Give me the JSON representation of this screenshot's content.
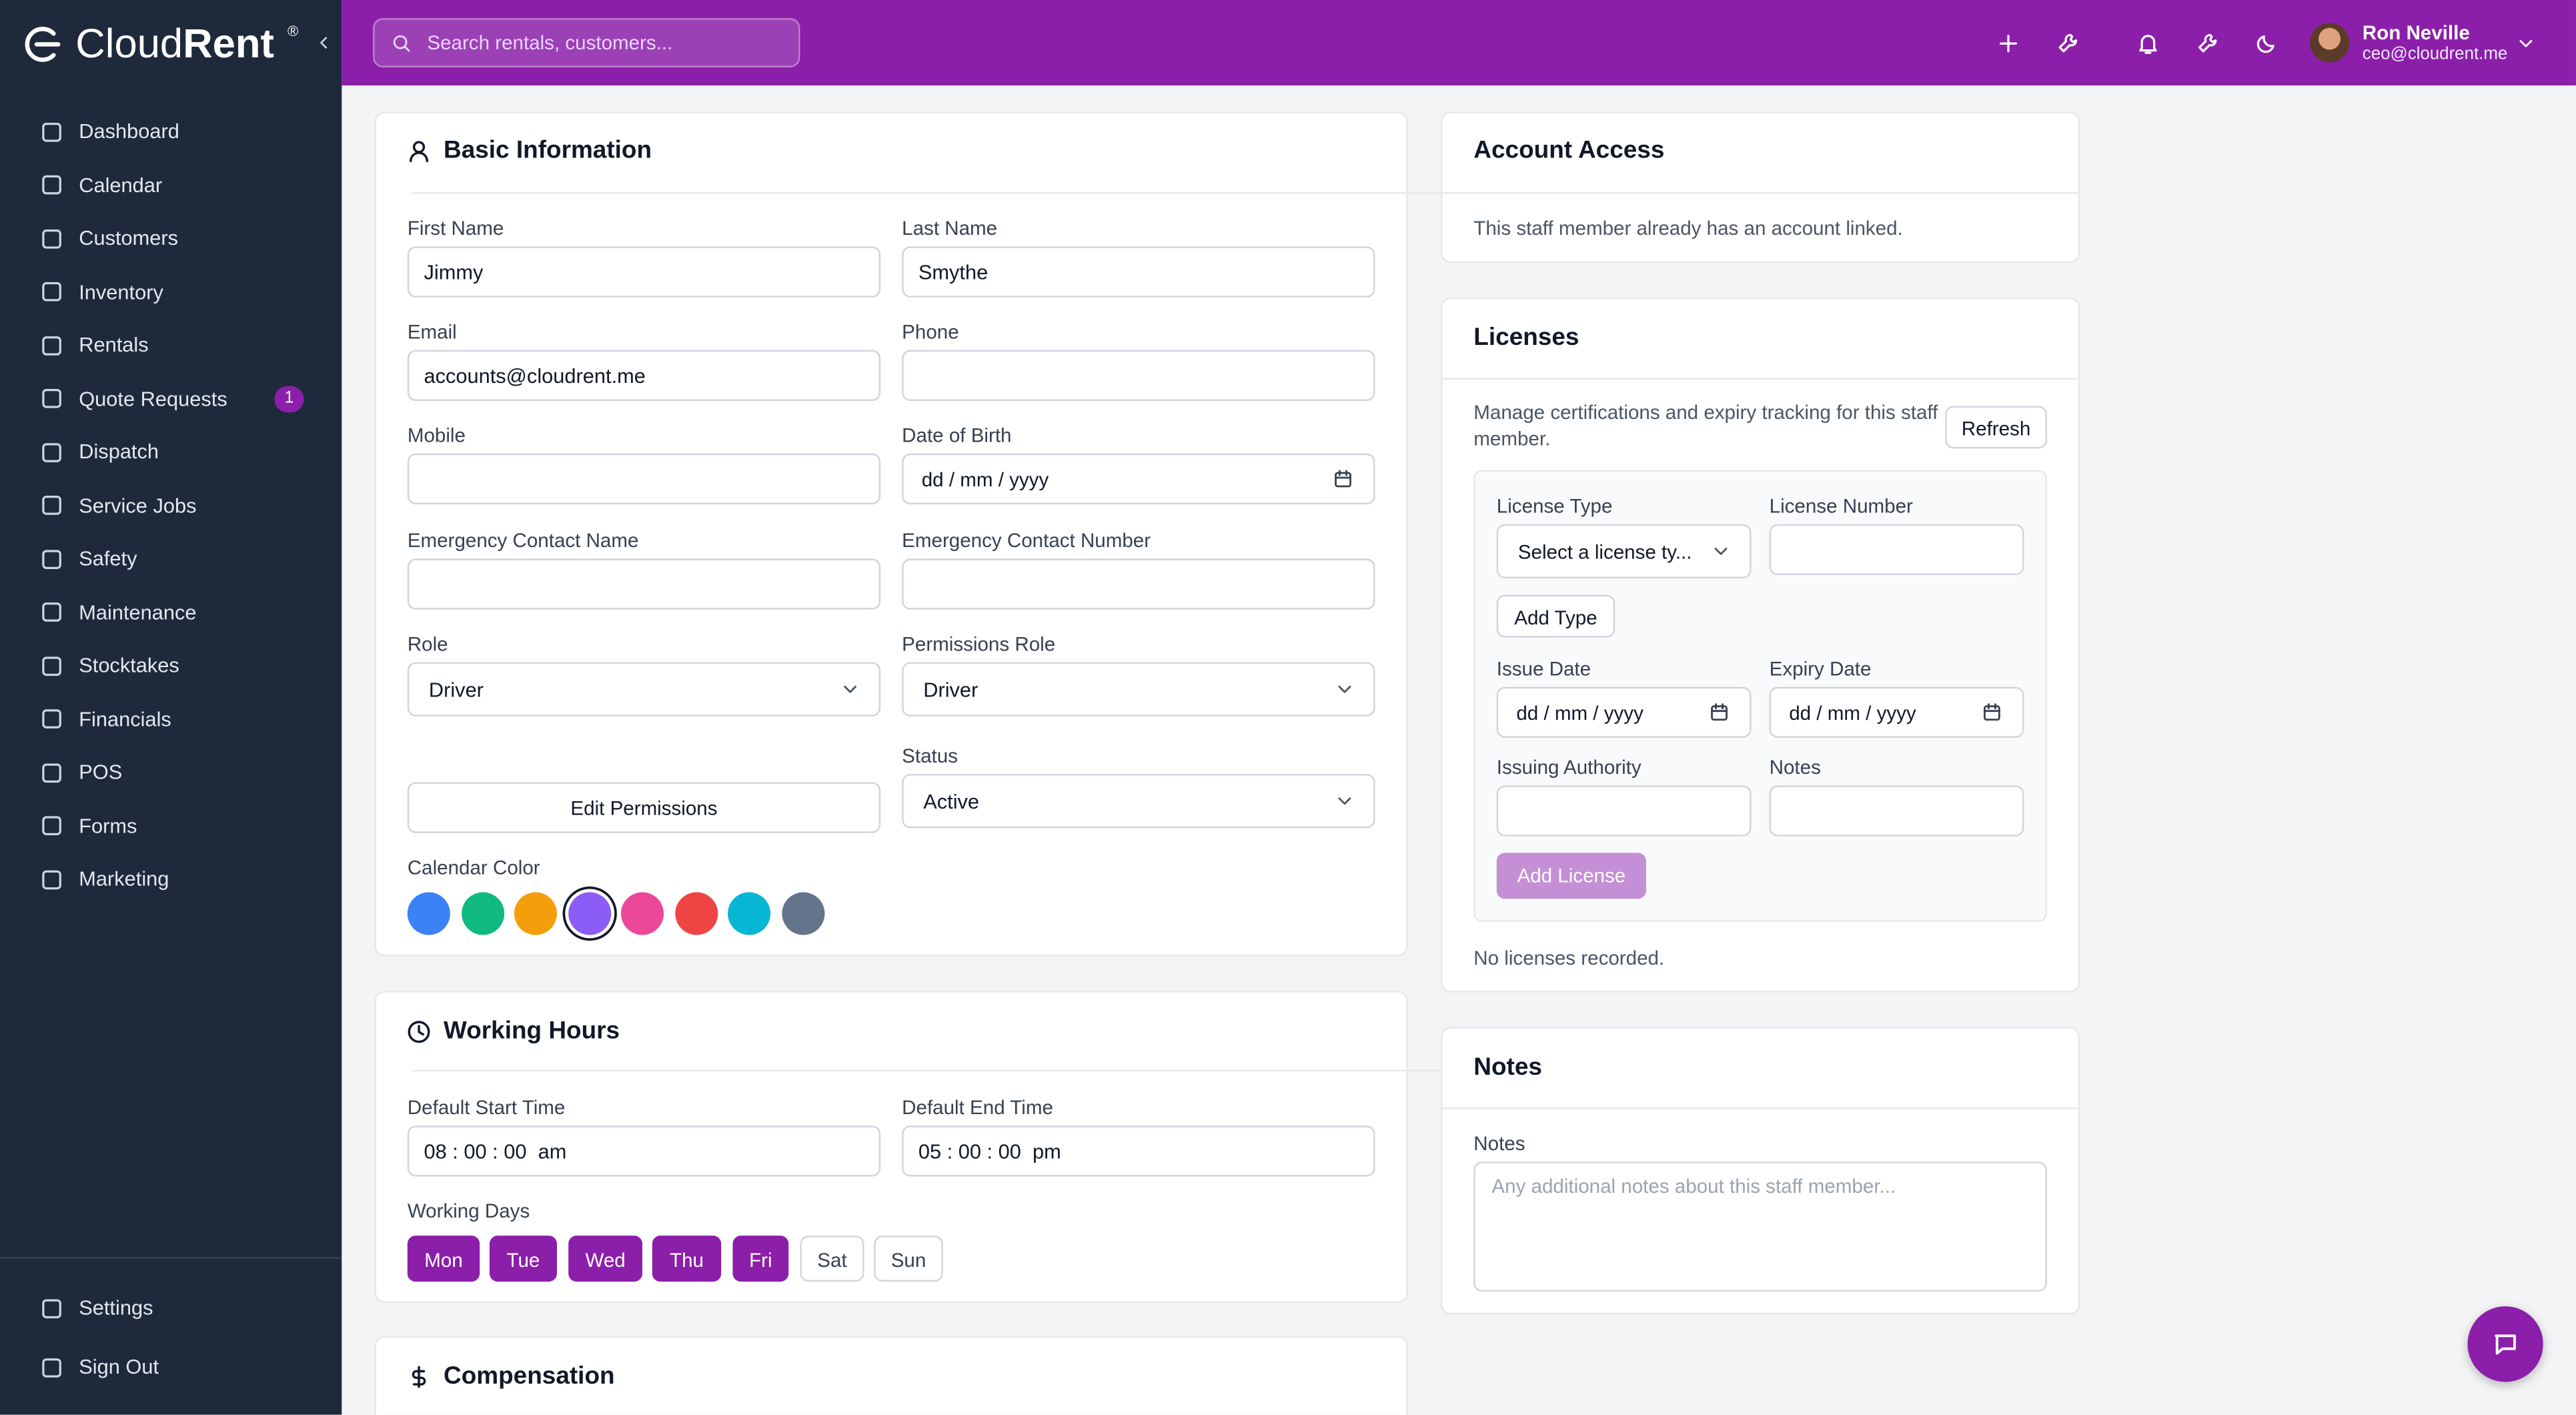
{
  "app": {
    "brand": [
      "Cloud",
      "Rent"
    ],
    "brand_mark": "®",
    "search_placeholder": "Search rentals, customers...",
    "user": {
      "name": "Ron Neville",
      "email": "ceo@cloudrent.me"
    }
  },
  "nav": [
    {
      "label": "Dashboard"
    },
    {
      "label": "Calendar"
    },
    {
      "label": "Customers"
    },
    {
      "label": "Inventory"
    },
    {
      "label": "Rentals"
    },
    {
      "label": "Quote Requests",
      "badge": 1
    },
    {
      "label": "Dispatch"
    },
    {
      "label": "Service Jobs"
    },
    {
      "label": "Safety"
    },
    {
      "label": "Maintenance"
    },
    {
      "label": "Stocktakes"
    },
    {
      "label": "Financials"
    },
    {
      "label": "POS"
    },
    {
      "label": "Forms"
    },
    {
      "label": "Marketing"
    }
  ],
  "nav_footer": [
    {
      "label": "Settings"
    },
    {
      "label": "Sign Out"
    }
  ],
  "basic_information": {
    "title": "Basic Information",
    "fields": [
      {
        "label": "First Name",
        "value": "Jimmy"
      },
      {
        "label": "Last Name",
        "value": "Smythe"
      },
      {
        "label": "Email",
        "value": "accounts@cloudrent.me"
      },
      {
        "label": "Phone"
      },
      {
        "label": "Mobile"
      },
      {
        "label": "Date of Birth",
        "placeholder": "dd / mm / yyyy"
      },
      {
        "label": "Emergency Contact Name"
      },
      {
        "label": "Emergency Contact Number"
      },
      {
        "label": "Role",
        "value": "Driver"
      },
      {
        "label": "Permissions Role",
        "value": "Driver"
      },
      {
        "label": "Status",
        "value": "Active"
      }
    ],
    "edit_permissions": "Edit Permissions",
    "calendar_color_label": "Calendar Color",
    "calendar_colors": [
      "#3b82f6",
      "#10b981",
      "#f59e0b",
      "#8b5cf6",
      "#ec4899",
      "#ef4444",
      "#06b6d4",
      "#64748b"
    ],
    "selected_color": 3
  },
  "working_hours": {
    "title": "Working Hours",
    "fields": [
      {
        "label": "Default Start Time",
        "value": "08 : 00 : 00  am"
      },
      {
        "label": "Default End Time",
        "value": "05 : 00 : 00  pm"
      }
    ],
    "working_days_label": "Working Days",
    "days": [
      {
        "label": "Mon",
        "active": true
      },
      {
        "label": "Tue",
        "active": true
      },
      {
        "label": "Wed",
        "active": true
      },
      {
        "label": "Thu",
        "active": true
      },
      {
        "label": "Fri",
        "active": true
      },
      {
        "label": "Sat",
        "active": false
      },
      {
        "label": "Sun",
        "active": false
      }
    ]
  },
  "compensation": {
    "title": "Compensation"
  },
  "account_access": {
    "title": "Account Access",
    "text": "This staff member already has an account linked."
  },
  "licenses": {
    "title": "Licenses",
    "description": "Manage certifications and expiry tracking for this staff member.",
    "refresh": "Refresh",
    "fields": [
      {
        "label": "License Type",
        "placeholder": "Select a license ty..."
      },
      {
        "label": "License Number"
      },
      {
        "label": "Issue Date",
        "placeholder": "dd / mm / yyyy"
      },
      {
        "label": "Expiry Date",
        "placeholder": "dd / mm / yyyy"
      },
      {
        "label": "Issuing Authority"
      },
      {
        "label": "Notes"
      }
    ],
    "add_type": "Add Type",
    "add_license": "Add License",
    "empty": "No licenses recorded."
  },
  "notes": {
    "title": "Notes",
    "label": "Notes",
    "placeholder": "Any additional notes about this staff member..."
  }
}
